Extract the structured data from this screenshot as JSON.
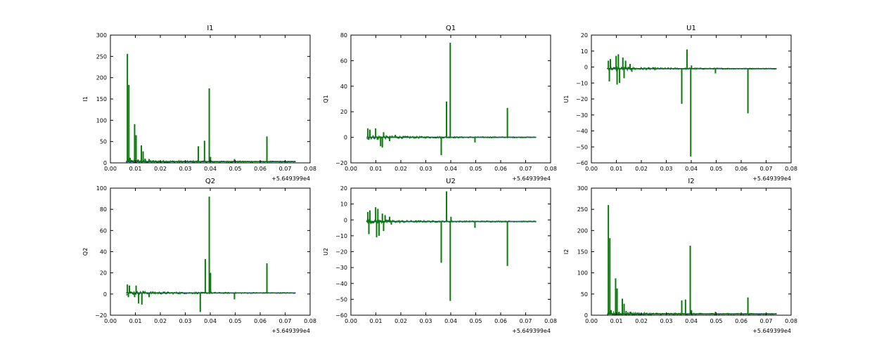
{
  "figure": {
    "background": "#ffffff",
    "line_colors": {
      "primary": "#1f1fc8",
      "secondary": "#0a7a0a"
    }
  },
  "chart_data": [
    {
      "type": "line",
      "title": "I1",
      "xlabel": "",
      "ylabel": "I1",
      "x_offset_label": "+5.649399e4",
      "xlim": [
        0.0,
        0.08
      ],
      "ylim": [
        0,
        300
      ],
      "xticks": [
        "0.00",
        "0.01",
        "0.02",
        "0.03",
        "0.04",
        "0.05",
        "0.06",
        "0.07",
        "0.08"
      ],
      "yticks": [
        "0",
        "50",
        "100",
        "150",
        "200",
        "250",
        "300"
      ],
      "ytick_values": [
        0,
        50,
        100,
        150,
        200,
        250,
        300
      ],
      "grid": false,
      "x_range": [
        0.0063,
        0.0742
      ],
      "baseline": 3,
      "spikes": [
        [
          0.0068,
          256
        ],
        [
          0.0074,
          183
        ],
        [
          0.0079,
          12
        ],
        [
          0.0097,
          91
        ],
        [
          0.0103,
          65
        ],
        [
          0.0111,
          8
        ],
        [
          0.0124,
          41
        ],
        [
          0.0131,
          27
        ],
        [
          0.0139,
          10
        ],
        [
          0.0155,
          9
        ],
        [
          0.0352,
          39
        ],
        [
          0.0377,
          52
        ],
        [
          0.0396,
          175
        ],
        [
          0.0401,
          14
        ],
        [
          0.0497,
          9
        ],
        [
          0.0627,
          62
        ]
      ]
    },
    {
      "type": "line",
      "title": "Q1",
      "xlabel": "",
      "ylabel": "Q1",
      "x_offset_label": "+5.649399e4",
      "xlim": [
        0.0,
        0.08
      ],
      "ylim": [
        -20,
        80
      ],
      "xticks": [
        "0.00",
        "0.01",
        "0.02",
        "0.03",
        "0.04",
        "0.05",
        "0.06",
        "0.07",
        "0.08"
      ],
      "yticks": [
        "−20",
        "0",
        "20",
        "40",
        "60",
        "80"
      ],
      "ytick_values": [
        -20,
        0,
        20,
        40,
        60,
        80
      ],
      "grid": false,
      "x_range": [
        0.0063,
        0.0742
      ],
      "baseline": 0,
      "spikes": [
        [
          0.0068,
          7
        ],
        [
          0.0072,
          -2
        ],
        [
          0.0076,
          6
        ],
        [
          0.0099,
          7
        ],
        [
          0.0106,
          -2
        ],
        [
          0.0119,
          -7
        ],
        [
          0.0126,
          -8
        ],
        [
          0.0131,
          4
        ],
        [
          0.0155,
          -3
        ],
        [
          0.0178,
          2
        ],
        [
          0.0362,
          -14
        ],
        [
          0.0383,
          28
        ],
        [
          0.0398,
          74
        ],
        [
          0.0497,
          -4
        ],
        [
          0.0627,
          23
        ]
      ]
    },
    {
      "type": "line",
      "title": "U1",
      "xlabel": "",
      "ylabel": "U1",
      "x_offset_label": "+5.649399e4",
      "xlim": [
        0.0,
        0.08
      ],
      "ylim": [
        -60,
        20
      ],
      "xticks": [
        "0.00",
        "0.01",
        "0.02",
        "0.03",
        "0.04",
        "0.05",
        "0.06",
        "0.07",
        "0.08"
      ],
      "yticks": [
        "−60",
        "−50",
        "−40",
        "−30",
        "−20",
        "−10",
        "0",
        "10",
        "20"
      ],
      "ytick_values": [
        -60,
        -50,
        -40,
        -30,
        -20,
        -10,
        0,
        10,
        20
      ],
      "grid": false,
      "x_range": [
        0.0063,
        0.0742
      ],
      "baseline": -1,
      "spikes": [
        [
          0.0068,
          4
        ],
        [
          0.0072,
          -9
        ],
        [
          0.0076,
          5
        ],
        [
          0.0099,
          7
        ],
        [
          0.0103,
          -11
        ],
        [
          0.0108,
          8
        ],
        [
          0.0113,
          -10
        ],
        [
          0.0126,
          6
        ],
        [
          0.0131,
          -7
        ],
        [
          0.0137,
          4
        ],
        [
          0.0155,
          2
        ],
        [
          0.0162,
          -3
        ],
        [
          0.0362,
          -23
        ],
        [
          0.0383,
          11
        ],
        [
          0.0398,
          -56
        ],
        [
          0.0401,
          1
        ],
        [
          0.0497,
          -4
        ],
        [
          0.0627,
          -29
        ]
      ]
    },
    {
      "type": "line",
      "title": "Q2",
      "xlabel": "",
      "ylabel": "Q2",
      "x_offset_label": "+5.649399e4",
      "xlim": [
        0.0,
        0.08
      ],
      "ylim": [
        -20,
        100
      ],
      "xticks": [
        "0.00",
        "0.01",
        "0.02",
        "0.03",
        "0.04",
        "0.05",
        "0.06",
        "0.07",
        "0.08"
      ],
      "yticks": [
        "−20",
        "0",
        "20",
        "40",
        "60",
        "80",
        "100"
      ],
      "ytick_values": [
        -20,
        0,
        20,
        40,
        60,
        80,
        100
      ],
      "grid": false,
      "x_range": [
        0.0063,
        0.0742
      ],
      "baseline": 1,
      "spikes": [
        [
          0.0068,
          9
        ],
        [
          0.0072,
          -3
        ],
        [
          0.0076,
          8
        ],
        [
          0.0097,
          -3
        ],
        [
          0.0103,
          8
        ],
        [
          0.0113,
          -9
        ],
        [
          0.0126,
          -10
        ],
        [
          0.0131,
          3
        ],
        [
          0.0155,
          -3
        ],
        [
          0.0178,
          2
        ],
        [
          0.036,
          -17
        ],
        [
          0.038,
          33
        ],
        [
          0.0396,
          92
        ],
        [
          0.0401,
          20
        ],
        [
          0.0497,
          -5
        ],
        [
          0.0627,
          29
        ]
      ]
    },
    {
      "type": "line",
      "title": "U2",
      "xlabel": "",
      "ylabel": "U2",
      "x_offset_label": "+5.649399e4",
      "xlim": [
        0.0,
        0.08
      ],
      "ylim": [
        -60,
        20
      ],
      "xticks": [
        "0.00",
        "0.01",
        "0.02",
        "0.03",
        "0.04",
        "0.05",
        "0.06",
        "0.07",
        "0.08"
      ],
      "yticks": [
        "−60",
        "−50",
        "−40",
        "−30",
        "−20",
        "−10",
        "0",
        "10",
        "20"
      ],
      "ytick_values": [
        -60,
        -50,
        -40,
        -30,
        -20,
        -10,
        0,
        10,
        20
      ],
      "grid": false,
      "x_range": [
        0.0063,
        0.0742
      ],
      "baseline": -1,
      "spikes": [
        [
          0.0068,
          5
        ],
        [
          0.0072,
          -9
        ],
        [
          0.0076,
          6
        ],
        [
          0.0099,
          8
        ],
        [
          0.0103,
          -11
        ],
        [
          0.0108,
          7
        ],
        [
          0.0113,
          -10
        ],
        [
          0.0126,
          4
        ],
        [
          0.0131,
          -7
        ],
        [
          0.0137,
          3
        ],
        [
          0.0155,
          2
        ],
        [
          0.0162,
          -3
        ],
        [
          0.0362,
          -27
        ],
        [
          0.0383,
          18
        ],
        [
          0.0398,
          -51
        ],
        [
          0.0401,
          2
        ],
        [
          0.0497,
          -5
        ],
        [
          0.0627,
          -29
        ]
      ]
    },
    {
      "type": "line",
      "title": "I2",
      "xlabel": "",
      "ylabel": "I2",
      "x_offset_label": "+5.649399e4",
      "xlim": [
        0.0,
        0.08
      ],
      "ylim": [
        0,
        300
      ],
      "xticks": [
        "0.00",
        "0.01",
        "0.02",
        "0.03",
        "0.04",
        "0.05",
        "0.06",
        "0.07",
        "0.08"
      ],
      "yticks": [
        "0",
        "50",
        "100",
        "150",
        "200",
        "250",
        "300"
      ],
      "ytick_values": [
        0,
        50,
        100,
        150,
        200,
        250,
        300
      ],
      "grid": false,
      "x_range": [
        0.0063,
        0.0742
      ],
      "baseline": 3,
      "spikes": [
        [
          0.0068,
          260
        ],
        [
          0.0074,
          182
        ],
        [
          0.0079,
          12
        ],
        [
          0.0097,
          87
        ],
        [
          0.0103,
          63
        ],
        [
          0.0111,
          8
        ],
        [
          0.0124,
          39
        ],
        [
          0.0131,
          27
        ],
        [
          0.0139,
          10
        ],
        [
          0.0155,
          8
        ],
        [
          0.0362,
          35
        ],
        [
          0.0377,
          37
        ],
        [
          0.0396,
          164
        ],
        [
          0.0401,
          12
        ],
        [
          0.0497,
          8
        ],
        [
          0.0627,
          42
        ]
      ]
    }
  ]
}
